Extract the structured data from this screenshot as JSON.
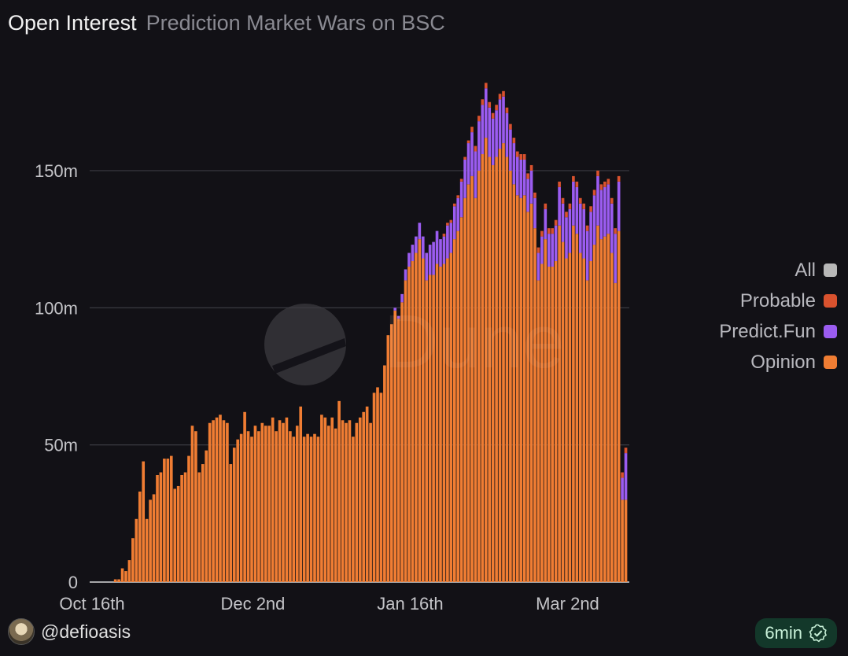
{
  "header": {
    "title": "Open Interest",
    "subtitle": "Prediction Market Wars on BSC"
  },
  "watermark": "Dune",
  "legend": [
    {
      "label": "All",
      "color": "#b8b8b8"
    },
    {
      "label": "Probable",
      "color": "#d9522e"
    },
    {
      "label": "Predict.Fun",
      "color": "#9b5cf0"
    },
    {
      "label": "Opinion",
      "color": "#f07d33"
    }
  ],
  "footer": {
    "author": "@defioasis",
    "freshness": "6min"
  },
  "chart_data": {
    "type": "bar",
    "stacked": true,
    "ylim": [
      0,
      195
    ],
    "y_unit": "m",
    "y_ticks": [
      {
        "value": 0,
        "label": "0"
      },
      {
        "value": 50,
        "label": "50m"
      },
      {
        "value": 100,
        "label": "100m"
      },
      {
        "value": 150,
        "label": "150m"
      }
    ],
    "x_ticks": [
      {
        "index": 0,
        "label": "Oct 16th"
      },
      {
        "index": 46,
        "label": "Dec 2nd"
      },
      {
        "index": 91,
        "label": "Jan 16th"
      },
      {
        "index": 136,
        "label": "Mar 2nd"
      }
    ],
    "grid": true,
    "legend_position": "right",
    "series": [
      {
        "name": "Opinion",
        "color": "#f07d33",
        "values": [
          0,
          0,
          0,
          0,
          0,
          0,
          1,
          1,
          5,
          4,
          8,
          16,
          23,
          33,
          44,
          23,
          30,
          32,
          39,
          40,
          45,
          45,
          46,
          34,
          35,
          39,
          40,
          46,
          57,
          55,
          40,
          43,
          48,
          58,
          59,
          60,
          61,
          59,
          58,
          43,
          49,
          52,
          54,
          62,
          55,
          53,
          57,
          55,
          58,
          57,
          57,
          60,
          55,
          59,
          58,
          60,
          55,
          53,
          57,
          64,
          53,
          54,
          53,
          54,
          53,
          61,
          60,
          57,
          60,
          56,
          66,
          59,
          58,
          59,
          53,
          58,
          60,
          62,
          64,
          58,
          69,
          71,
          69,
          79,
          90,
          94,
          99,
          96,
          102,
          110,
          115,
          117,
          120,
          125,
          118,
          110,
          112,
          112,
          116,
          115,
          116,
          118,
          120,
          125,
          128,
          133,
          140,
          145,
          148,
          140,
          150,
          156,
          162,
          155,
          152,
          155,
          158,
          160,
          155,
          150,
          145,
          141,
          140,
          141,
          135,
          138,
          129,
          110,
          116,
          125,
          115,
          115,
          117,
          130,
          124,
          118,
          120,
          130,
          127,
          120,
          118,
          110,
          117,
          123,
          130,
          125,
          126,
          127,
          120,
          109,
          128,
          30,
          30,
          0
        ]
      },
      {
        "name": "Predict.Fun",
        "color": "#9b5cf0",
        "values": [
          0,
          0,
          0,
          0,
          0,
          0,
          0,
          0,
          0,
          0,
          0,
          0,
          0,
          0,
          0,
          0,
          0,
          0,
          0,
          0,
          0,
          0,
          0,
          0,
          0,
          0,
          0,
          0,
          0,
          0,
          0,
          0,
          0,
          0,
          0,
          0,
          0,
          0,
          0,
          0,
          0,
          0,
          0,
          0,
          0,
          0,
          0,
          0,
          0,
          0,
          0,
          0,
          0,
          0,
          0,
          0,
          0,
          0,
          0,
          0,
          0,
          0,
          0,
          0,
          0,
          0,
          0,
          0,
          0,
          0,
          0,
          0,
          0,
          0,
          0,
          0,
          0,
          0,
          0,
          0,
          0,
          0,
          0,
          0,
          0,
          0,
          1,
          1,
          3,
          4,
          5,
          6,
          6,
          6,
          8,
          10,
          11,
          12,
          12,
          10,
          10,
          12,
          11,
          12,
          12,
          13,
          14,
          15,
          16,
          17,
          18,
          18,
          18,
          18,
          17,
          17,
          18,
          17,
          16,
          15,
          15,
          14,
          14,
          13,
          12,
          12,
          11,
          10,
          10,
          11,
          12,
          12,
          13,
          14,
          14,
          15,
          16,
          16,
          17,
          18,
          18,
          18,
          18,
          18,
          18,
          18,
          18,
          18,
          18,
          18,
          18,
          8,
          17,
          0
        ]
      },
      {
        "name": "Probable",
        "color": "#d9522e",
        "values": [
          0,
          0,
          0,
          0,
          0,
          0,
          0,
          0,
          0,
          0,
          0,
          0,
          0,
          0,
          0,
          0,
          0,
          0,
          0,
          0,
          0,
          0,
          0,
          0,
          0,
          0,
          0,
          0,
          0,
          0,
          0,
          0,
          0,
          0,
          0,
          0,
          0,
          0,
          0,
          0,
          0,
          0,
          0,
          0,
          0,
          0,
          0,
          0,
          0,
          0,
          0,
          0,
          0,
          0,
          0,
          0,
          0,
          0,
          0,
          0,
          0,
          0,
          0,
          0,
          0,
          0,
          0,
          0,
          0,
          0,
          0,
          0,
          0,
          0,
          0,
          0,
          0,
          0,
          0,
          0,
          0,
          0,
          0,
          0,
          0,
          0,
          0,
          0,
          0,
          0,
          0,
          0,
          0,
          0,
          0,
          0,
          0,
          0,
          0,
          0,
          1,
          1,
          1,
          1,
          1,
          1,
          1,
          1,
          2,
          2,
          2,
          2,
          2,
          2,
          2,
          2,
          2,
          2,
          2,
          2,
          2,
          2,
          2,
          2,
          2,
          2,
          2,
          2,
          2,
          2,
          2,
          2,
          2,
          2,
          2,
          2,
          2,
          2,
          2,
          2,
          2,
          2,
          2,
          2,
          2,
          2,
          2,
          2,
          2,
          2,
          2,
          2,
          2,
          0
        ]
      }
    ]
  }
}
